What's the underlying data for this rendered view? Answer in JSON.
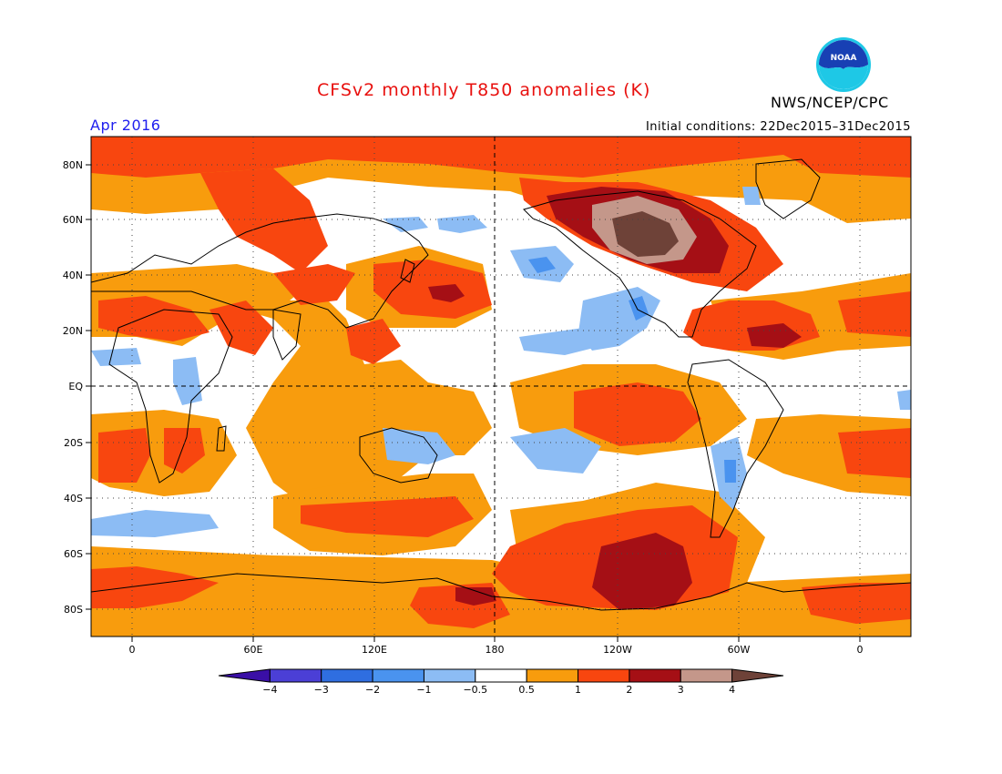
{
  "header": {
    "title": "CFSv2 monthly T850 anomalies (K)",
    "month": "Apr 2016",
    "initial_conditions": "Initial conditions: 22Dec2015–31Dec2015",
    "agency": "NWS/NCEP/CPC",
    "logo_text": "NOAA"
  },
  "map": {
    "lat_ticks": [
      "80N",
      "60N",
      "40N",
      "20N",
      "EQ",
      "20S",
      "40S",
      "60S",
      "80S"
    ],
    "lon_ticks": [
      "0",
      "60E",
      "120E",
      "180",
      "120W",
      "60W",
      "0"
    ]
  },
  "colorbar": {
    "labels": [
      "−4",
      "−3",
      "−2",
      "−1",
      "−0.5",
      "0.5",
      "1",
      "2",
      "3",
      "4"
    ],
    "colors": [
      "#3a0fa6",
      "#4b3fd6",
      "#2f6ee0",
      "#4a93ef",
      "#8cbcf4",
      "#ffffff",
      "#f89c0d",
      "#f8460f",
      "#a50f15",
      "#c4978a",
      "#6e4238"
    ]
  },
  "palette": {
    "neutral": "#ffffff",
    "warm_05": "#f89c0d",
    "warm_1": "#f8460f",
    "warm_2": "#a50f15",
    "warm_3": "#c4978a",
    "warm_4": "#6e4238",
    "cool_05": "#8cbcf4",
    "cool_1": "#4a93ef"
  }
}
